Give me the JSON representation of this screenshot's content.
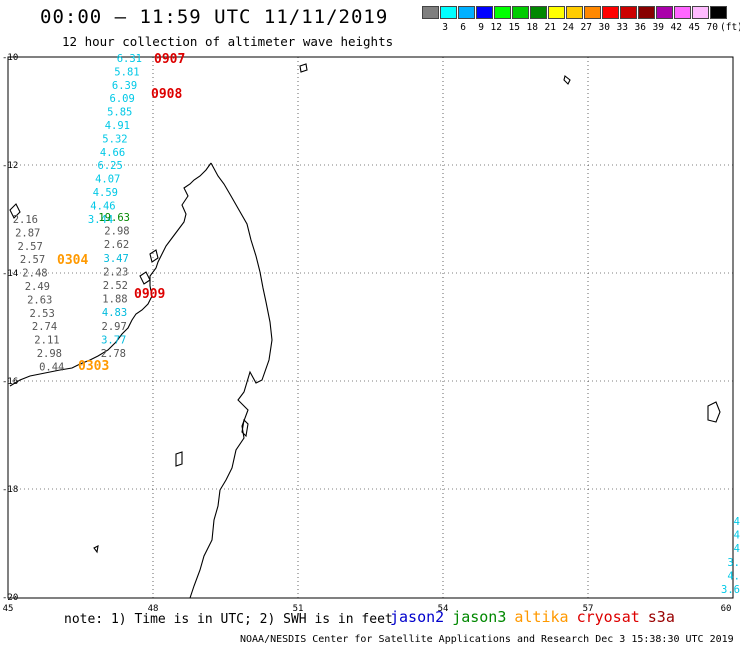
{
  "header": {
    "title": "00:00 – 11:59 UTC 11/11/2019",
    "subtitle": "12 hour collection of altimeter wave heights"
  },
  "color_scale": {
    "labels": [
      "3",
      "6",
      "9",
      "12",
      "15",
      "18",
      "21",
      "24",
      "27",
      "30",
      "33",
      "36",
      "39",
      "42",
      "45",
      "70"
    ],
    "unit": "(ft)",
    "colors": [
      "#7f7f7f",
      "#00ffff",
      "#00b0ff",
      "#0000ff",
      "#00ff00",
      "#00cc00",
      "#008800",
      "#ffff00",
      "#ffcc00",
      "#ff8800",
      "#ff0000",
      "#cc0000",
      "#880000",
      "#aa00aa",
      "#ff66ff",
      "#ffbbff",
      "#000000"
    ]
  },
  "axes": {
    "lon_labels": [
      "45",
      "48",
      "51",
      "54",
      "57",
      "60"
    ],
    "lat_labels": [
      "-10",
      "-12",
      "-14",
      "-16",
      "-18",
      "-20"
    ]
  },
  "pass_labels": [
    {
      "text": "0907",
      "color": "#dd0000",
      "key": "p1"
    },
    {
      "text": "0908",
      "color": "#dd0000",
      "key": "p2"
    },
    {
      "text": "0304",
      "color": "#ff9900",
      "key": "p3"
    },
    {
      "text": "0909",
      "color": "#dd0000",
      "key": "p4"
    },
    {
      "text": "0303",
      "color": "#ff9900",
      "key": "p5"
    }
  ],
  "track_cyan_north": [
    "6.31",
    "5.81",
    "6.39",
    "6.09",
    "5.85",
    "4.91",
    "5.32",
    "4.66",
    "6.25",
    "4.07",
    "4.59",
    "4.46",
    "3.44"
  ],
  "track_mid": [
    {
      "v": "19.63",
      "c": "#008800"
    },
    {
      "v": "2.98",
      "c": "#555555"
    },
    {
      "v": "2.62",
      "c": "#555555"
    },
    {
      "v": "3.47",
      "c": "#00bbdd"
    },
    {
      "v": "2.23",
      "c": "#555555"
    },
    {
      "v": "2.52",
      "c": "#555555"
    },
    {
      "v": "1.88",
      "c": "#555555"
    },
    {
      "v": "4.83",
      "c": "#00bbdd"
    },
    {
      "v": "2.97",
      "c": "#555555"
    },
    {
      "v": "3.77",
      "c": "#00bbdd"
    },
    {
      "v": "2.78",
      "c": "#555555"
    }
  ],
  "track_grey_west": [
    "2.16",
    "2.87",
    "2.57",
    "2.57",
    "2.48",
    "2.49",
    "2.63",
    "2.53",
    "2.74",
    "2.11",
    "2.98",
    "0.44"
  ],
  "track_east_edge": [
    "4",
    "4",
    "4",
    "3.",
    "4.",
    "3.6"
  ],
  "footer": {
    "note": "note:  1) Time is in UTC;  2) SWH is in feet",
    "credit": "NOAA/NESDIS Center for Satellite Applications and Research    Dec  3 15:38:30 UTC 2019",
    "satellites": [
      {
        "name": "jason2",
        "color": "#0000cc"
      },
      {
        "name": "jason3",
        "color": "#008800"
      },
      {
        "name": "altika",
        "color": "#ff9900"
      },
      {
        "name": "cryosat",
        "color": "#dd0000"
      },
      {
        "name": "s3a",
        "color": "#990000"
      }
    ]
  }
}
